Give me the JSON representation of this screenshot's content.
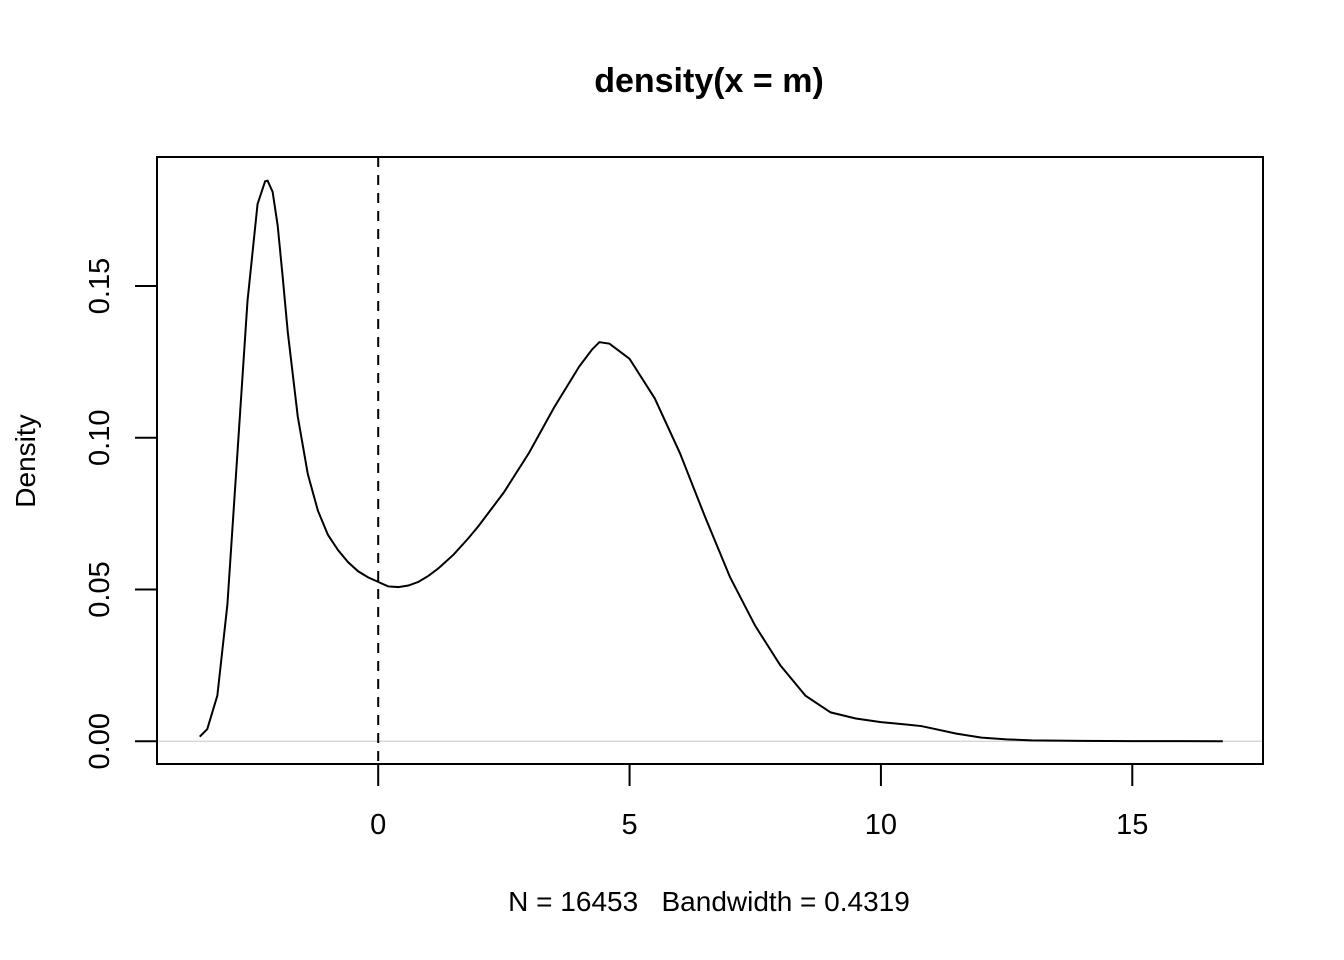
{
  "chart_data": {
    "type": "line",
    "title": "density(x = m)",
    "xlabel": "N = 16453   Bandwidth = 0.4319",
    "ylabel": "Density",
    "xlim": [
      -4.4,
      17.6
    ],
    "ylim": [
      -0.0075,
      0.1925
    ],
    "x_ticks": [
      0,
      5,
      10,
      15
    ],
    "x_tick_labels": [
      "0",
      "5",
      "10",
      "15"
    ],
    "y_ticks": [
      0,
      0.05,
      0.1,
      0.15
    ],
    "y_tick_labels": [
      "0.00",
      "0.05",
      "0.10",
      "0.15"
    ],
    "grid": false,
    "zero_line": 0,
    "vertical_line": {
      "x": 0,
      "style": "dashed"
    },
    "series": [
      {
        "x": [
          -3.55,
          -3.4,
          -3.2,
          -3.0,
          -2.8,
          -2.6,
          -2.4,
          -2.25,
          -2.2,
          -2.1,
          -2.0,
          -1.9,
          -1.8,
          -1.6,
          -1.4,
          -1.2,
          -1.0,
          -0.8,
          -0.6,
          -0.4,
          -0.2,
          0.0,
          0.2,
          0.4,
          0.6,
          0.8,
          1.0,
          1.2,
          1.5,
          1.8,
          2.0,
          2.5,
          3.0,
          3.5,
          4.0,
          4.25,
          4.4,
          4.6,
          5.0,
          5.5,
          6.0,
          6.5,
          7.0,
          7.5,
          8.0,
          8.5,
          9.0,
          9.5,
          10.0,
          10.5,
          10.8,
          11.0,
          11.5,
          12.0,
          12.5,
          13.0,
          13.5,
          14.0,
          15.0,
          16.0,
          16.8
        ],
        "y": [
          0.0015,
          0.004,
          0.015,
          0.045,
          0.095,
          0.145,
          0.177,
          0.1845,
          0.1847,
          0.181,
          0.17,
          0.153,
          0.135,
          0.107,
          0.088,
          0.076,
          0.068,
          0.063,
          0.059,
          0.056,
          0.054,
          0.0525,
          0.051,
          0.0508,
          0.0513,
          0.0525,
          0.0545,
          0.057,
          0.0615,
          0.067,
          0.071,
          0.082,
          0.095,
          0.11,
          0.1235,
          0.129,
          0.1315,
          0.131,
          0.126,
          0.113,
          0.095,
          0.074,
          0.054,
          0.038,
          0.025,
          0.015,
          0.0095,
          0.0075,
          0.0063,
          0.0055,
          0.005,
          0.0043,
          0.0025,
          0.0012,
          0.0006,
          0.0003,
          0.0002,
          0.0001,
          5e-05,
          2e-05,
          0.0
        ]
      }
    ]
  }
}
